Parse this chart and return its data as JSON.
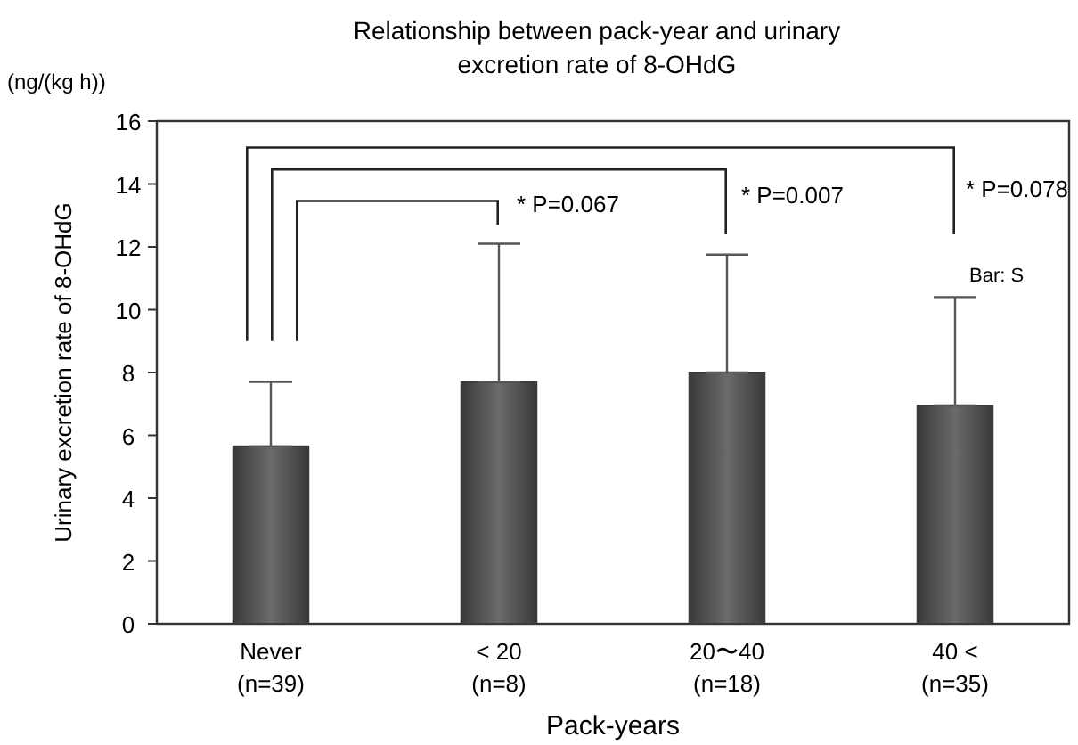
{
  "chart_data": {
    "type": "bar",
    "title": "Relationship between pack-year and urinary excretion rate of 8-OHdG",
    "xlabel": "Pack-years",
    "ylabel": "Urinary excretion rate of 8-OHdG",
    "categories": [
      "Never\n(n=39)",
      "< 20\n(n=8)",
      "20〜40\n(n=18)",
      "40 <\n(n=35)"
    ],
    "values": [
      5.65,
      7.7,
      8.0,
      6.95
    ],
    "errors": [
      [
        5.65,
        7.7
      ],
      [
        7.7,
        12.1
      ],
      [
        8.0,
        11.75
      ],
      [
        6.95,
        10.4
      ]
    ],
    "color": "#3a3a3a",
    "ylim": [
      0,
      16
    ],
    "yticks": [
      0,
      2,
      4,
      6,
      8,
      10,
      12,
      14,
      16
    ],
    "annotations": [
      "(ng/(kg h))",
      "* P=0.067",
      "* P=0.007",
      "* P=0.078",
      "Bar: S"
    ],
    "grid": false
  }
}
